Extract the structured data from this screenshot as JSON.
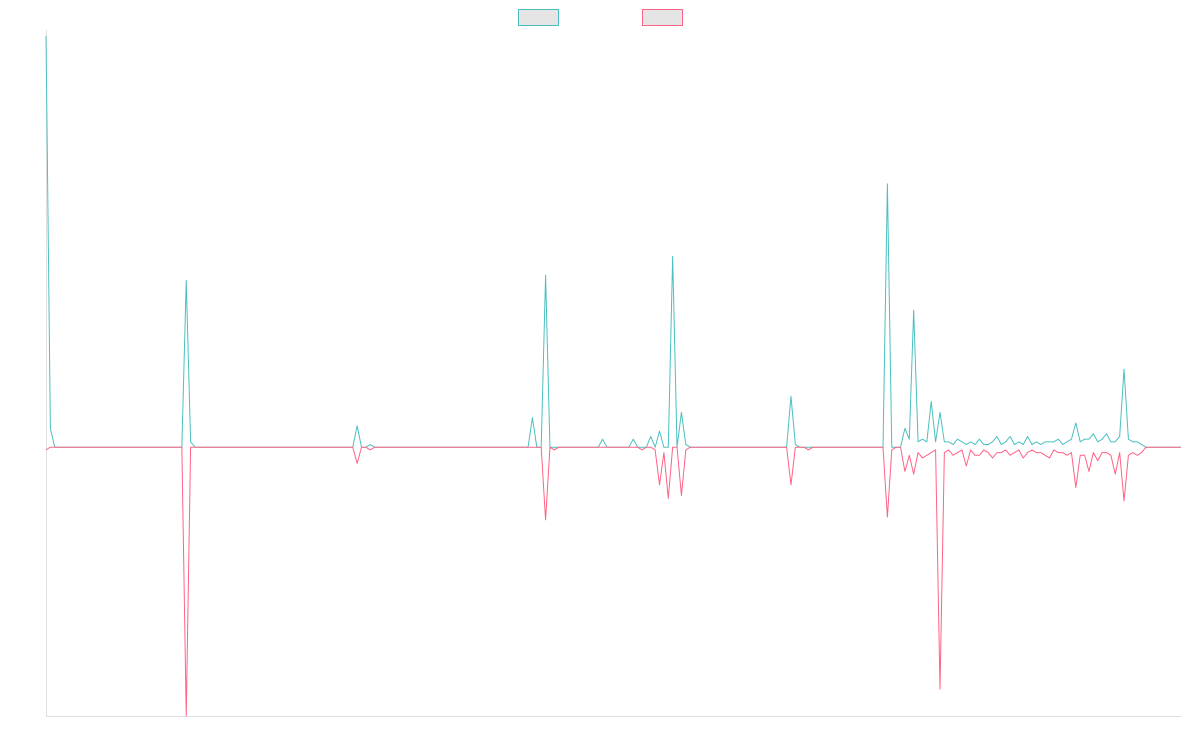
{
  "chart_data": {
    "type": "line",
    "title": "",
    "xlabel": "",
    "ylabel": "",
    "grid": false,
    "legend_position": "top-center",
    "point_count": 260,
    "ylim": [
      -1.0,
      1.53
    ],
    "series": [
      {
        "color": "#4bc0c0",
        "fill": "#e5e5e5",
        "baseline": 0,
        "spikes": [
          [
            0,
            1.53
          ],
          [
            1,
            0.07
          ],
          [
            2,
            0.0
          ],
          [
            31,
            0.0
          ],
          [
            32,
            0.62
          ],
          [
            33,
            0.02
          ],
          [
            34,
            0.0
          ],
          [
            70,
            0.0
          ],
          [
            71,
            0.08
          ],
          [
            72,
            0.0
          ],
          [
            73,
            0.0
          ],
          [
            74,
            0.01
          ],
          [
            75,
            0.0
          ],
          [
            110,
            0.0
          ],
          [
            111,
            0.11
          ],
          [
            112,
            0.0
          ],
          [
            113,
            0.0
          ],
          [
            114,
            0.64
          ],
          [
            115,
            0.0
          ],
          [
            116,
            0.0
          ],
          [
            126,
            0.0
          ],
          [
            127,
            0.03
          ],
          [
            128,
            0.0
          ],
          [
            133,
            0.0
          ],
          [
            134,
            0.03
          ],
          [
            135,
            0.0
          ],
          [
            136,
            0.0
          ],
          [
            137,
            0.0
          ],
          [
            138,
            0.04
          ],
          [
            139,
            0.0
          ],
          [
            140,
            0.06
          ],
          [
            141,
            0.0
          ],
          [
            142,
            0.0
          ],
          [
            143,
            0.71
          ],
          [
            144,
            0.0
          ],
          [
            145,
            0.13
          ],
          [
            146,
            0.01
          ],
          [
            147,
            0.0
          ],
          [
            169,
            0.0
          ],
          [
            170,
            0.19
          ],
          [
            171,
            0.01
          ],
          [
            172,
            0.0
          ],
          [
            173,
            0.0
          ],
          [
            174,
            0.0
          ],
          [
            191,
            0.0
          ],
          [
            192,
            0.98
          ],
          [
            193,
            0.0
          ],
          [
            194,
            0.0
          ],
          [
            195,
            0.0
          ],
          [
            196,
            0.07
          ],
          [
            197,
            0.03
          ],
          [
            198,
            0.51
          ],
          [
            199,
            0.02
          ],
          [
            200,
            0.03
          ],
          [
            201,
            0.02
          ],
          [
            202,
            0.17
          ],
          [
            203,
            0.02
          ],
          [
            204,
            0.13
          ],
          [
            205,
            0.02
          ],
          [
            206,
            0.02
          ],
          [
            207,
            0.01
          ],
          [
            208,
            0.03
          ],
          [
            209,
            0.02
          ],
          [
            210,
            0.01
          ],
          [
            211,
            0.02
          ],
          [
            212,
            0.01
          ],
          [
            213,
            0.03
          ],
          [
            214,
            0.01
          ],
          [
            215,
            0.01
          ],
          [
            216,
            0.02
          ],
          [
            217,
            0.04
          ],
          [
            218,
            0.01
          ],
          [
            219,
            0.02
          ],
          [
            220,
            0.04
          ],
          [
            221,
            0.01
          ],
          [
            222,
            0.02
          ],
          [
            223,
            0.01
          ],
          [
            224,
            0.04
          ],
          [
            225,
            0.01
          ],
          [
            226,
            0.02
          ],
          [
            227,
            0.01
          ],
          [
            228,
            0.02
          ],
          [
            229,
            0.02
          ],
          [
            230,
            0.02
          ],
          [
            231,
            0.03
          ],
          [
            232,
            0.01
          ],
          [
            233,
            0.02
          ],
          [
            234,
            0.03
          ],
          [
            235,
            0.09
          ],
          [
            236,
            0.02
          ],
          [
            237,
            0.03
          ],
          [
            238,
            0.03
          ],
          [
            239,
            0.05
          ],
          [
            240,
            0.02
          ],
          [
            241,
            0.03
          ],
          [
            242,
            0.05
          ],
          [
            243,
            0.02
          ],
          [
            244,
            0.02
          ],
          [
            245,
            0.04
          ],
          [
            246,
            0.29
          ],
          [
            247,
            0.03
          ],
          [
            248,
            0.02
          ],
          [
            249,
            0.02
          ],
          [
            250,
            0.01
          ]
        ]
      },
      {
        "color": "#ff6384",
        "fill": "#e5e5e5",
        "baseline": 0,
        "spikes": [
          [
            0,
            -0.01
          ],
          [
            1,
            0.0
          ],
          [
            31,
            0.0
          ],
          [
            32,
            -1.0
          ],
          [
            33,
            0.0
          ],
          [
            70,
            0.0
          ],
          [
            71,
            -0.06
          ],
          [
            72,
            0.0
          ],
          [
            73,
            0.0
          ],
          [
            74,
            -0.01
          ],
          [
            75,
            0.0
          ],
          [
            113,
            0.0
          ],
          [
            114,
            -0.27
          ],
          [
            115,
            0.0
          ],
          [
            116,
            -0.01
          ],
          [
            117,
            0.0
          ],
          [
            133,
            0.0
          ],
          [
            134,
            0.0
          ],
          [
            135,
            0.0
          ],
          [
            136,
            -0.01
          ],
          [
            137,
            0.0
          ],
          [
            138,
            0.0
          ],
          [
            139,
            -0.01
          ],
          [
            140,
            -0.14
          ],
          [
            141,
            -0.02
          ],
          [
            142,
            -0.19
          ],
          [
            143,
            0.0
          ],
          [
            144,
            0.0
          ],
          [
            145,
            -0.18
          ],
          [
            146,
            -0.01
          ],
          [
            147,
            0.0
          ],
          [
            169,
            0.0
          ],
          [
            170,
            -0.14
          ],
          [
            171,
            0.0
          ],
          [
            172,
            0.0
          ],
          [
            173,
            0.0
          ],
          [
            174,
            -0.01
          ],
          [
            175,
            0.0
          ],
          [
            191,
            0.0
          ],
          [
            192,
            -0.26
          ],
          [
            193,
            -0.01
          ],
          [
            194,
            0.0
          ],
          [
            195,
            0.0
          ],
          [
            196,
            -0.09
          ],
          [
            197,
            -0.03
          ],
          [
            198,
            -0.1
          ],
          [
            199,
            -0.02
          ],
          [
            200,
            -0.04
          ],
          [
            201,
            -0.03
          ],
          [
            202,
            -0.02
          ],
          [
            203,
            -0.01
          ],
          [
            204,
            -0.9
          ],
          [
            205,
            -0.02
          ],
          [
            206,
            -0.01
          ],
          [
            207,
            -0.03
          ],
          [
            208,
            -0.02
          ],
          [
            209,
            -0.01
          ],
          [
            210,
            -0.07
          ],
          [
            211,
            -0.01
          ],
          [
            212,
            -0.03
          ],
          [
            213,
            -0.03
          ],
          [
            214,
            -0.01
          ],
          [
            215,
            -0.02
          ],
          [
            216,
            -0.04
          ],
          [
            217,
            -0.02
          ],
          [
            218,
            -0.02
          ],
          [
            219,
            -0.01
          ],
          [
            220,
            -0.03
          ],
          [
            221,
            -0.02
          ],
          [
            222,
            -0.01
          ],
          [
            223,
            -0.04
          ],
          [
            224,
            -0.02
          ],
          [
            225,
            -0.01
          ],
          [
            226,
            -0.02
          ],
          [
            227,
            -0.02
          ],
          [
            228,
            -0.03
          ],
          [
            229,
            -0.04
          ],
          [
            230,
            -0.01
          ],
          [
            231,
            -0.02
          ],
          [
            232,
            -0.02
          ],
          [
            233,
            -0.03
          ],
          [
            234,
            -0.02
          ],
          [
            235,
            -0.15
          ],
          [
            236,
            -0.03
          ],
          [
            237,
            -0.03
          ],
          [
            238,
            -0.09
          ],
          [
            239,
            -0.02
          ],
          [
            240,
            -0.05
          ],
          [
            241,
            -0.02
          ],
          [
            242,
            -0.02
          ],
          [
            243,
            -0.03
          ],
          [
            244,
            -0.1
          ],
          [
            245,
            -0.02
          ],
          [
            246,
            -0.2
          ],
          [
            247,
            -0.03
          ],
          [
            248,
            -0.02
          ],
          [
            249,
            -0.03
          ],
          [
            250,
            -0.02
          ]
        ]
      }
    ]
  }
}
